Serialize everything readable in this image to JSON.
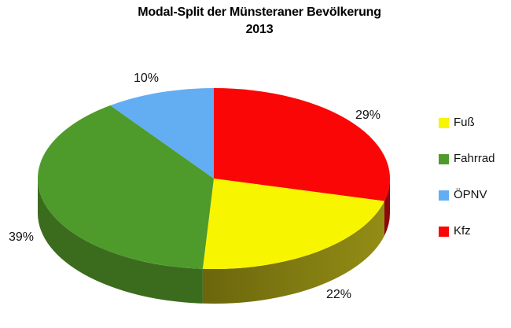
{
  "header": {
    "title_line1": "Modal-Split der Münsteraner Bevölkerung",
    "title_line2": "2013"
  },
  "chart_data": {
    "type": "pie",
    "is_3d": true,
    "title": "Modal-Split der Münsteraner Bevölkerung 2013",
    "unit": "%",
    "direction": "clockwise",
    "start_angle_deg": 0,
    "legend_position": "right",
    "background_color": "#FFFFFF",
    "slices": [
      {
        "name": "Kfz",
        "slug": "kfz",
        "value": 29,
        "label": "29%",
        "color": "#FB0606",
        "side_color": "#8E070C"
      },
      {
        "name": "Fuß",
        "slug": "fuss",
        "value": 22,
        "label": "22%",
        "color": "#F8F500",
        "side_color": "#6B660C",
        "side_color2": "#938D16"
      },
      {
        "name": "Fahrrad",
        "slug": "fahrrad",
        "value": 39,
        "label": "39%",
        "color": "#4E9B2B",
        "side_color": "#3B6C1D"
      },
      {
        "name": "ÖPNV",
        "slug": "oepnv",
        "value": 10,
        "label": "10%",
        "color": "#63AEF3",
        "side_color": "#3F76AD"
      }
    ],
    "legend_order": [
      "Fuß",
      "Fahrrad",
      "ÖPNV",
      "Kfz"
    ]
  }
}
